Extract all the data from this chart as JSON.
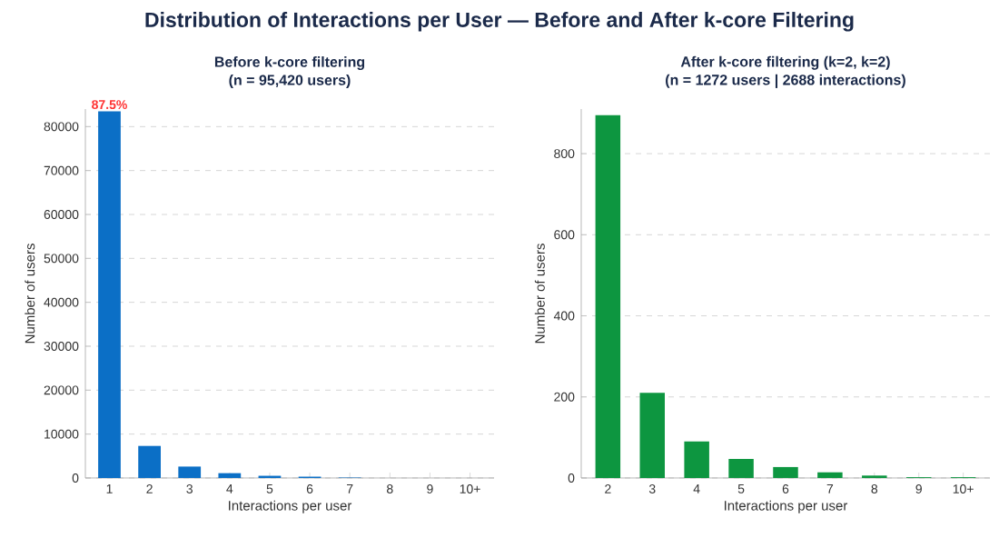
{
  "chart_data": [
    {
      "type": "bar",
      "title": "Before k-core filtering",
      "subtitle": "(n = 95,420 users)",
      "xlabel": "Interactions per user",
      "ylabel": "Number of users",
      "annotations": [
        "Distribution of Interactions per User — Before and After k-core Filtering",
        {
          "text": "87.5%",
          "x": "1",
          "y": 83500
        }
      ],
      "categories": [
        "1",
        "2",
        "3",
        "4",
        "5",
        "6",
        "7",
        "8",
        "9",
        "10+"
      ],
      "values": [
        83500,
        7300,
        2600,
        1100,
        500,
        300,
        100,
        null,
        null,
        null
      ],
      "color": "#0b6fc6",
      "ylim": [
        0,
        84000
      ],
      "yticks": [
        0,
        10000,
        20000,
        30000,
        40000,
        50000,
        60000,
        70000,
        80000
      ],
      "grid": "y"
    },
    {
      "type": "bar",
      "title": "After k-core filtering (k=2, k=2)",
      "subtitle": "(n = 1272 users | 2688 interactions)",
      "xlabel": "Interactions per user",
      "ylabel": "Number of users",
      "categories": [
        "2",
        "3",
        "4",
        "5",
        "6",
        "7",
        "8",
        "9",
        "10+"
      ],
      "values": [
        895,
        210,
        90,
        47,
        27,
        14,
        6,
        2,
        2
      ],
      "color": "#0d9640",
      "ylim": [
        0,
        910
      ],
      "yticks": [
        0,
        200,
        400,
        600,
        800
      ],
      "grid": "y"
    }
  ]
}
